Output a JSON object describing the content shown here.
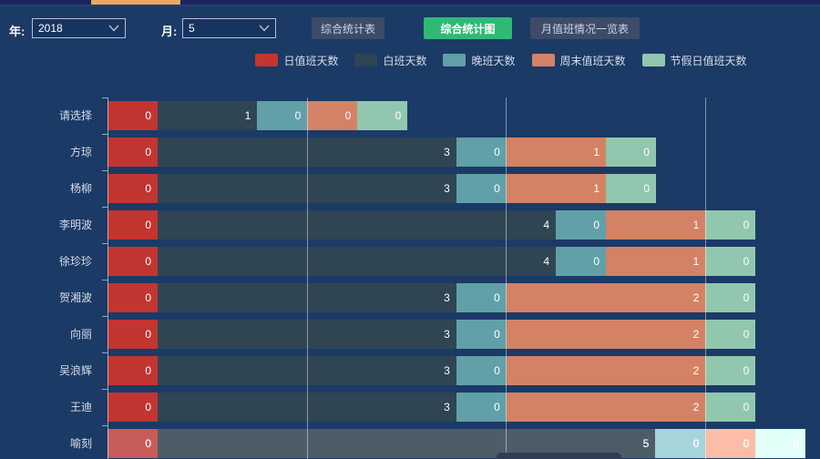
{
  "top_strip": {
    "accent_color": "#e9a85f"
  },
  "toolbar": {
    "year_label": "年:",
    "year_value": "2018",
    "month_label": "月:",
    "month_value": "5",
    "buttons": [
      {
        "label": "综合统计表",
        "active": false
      },
      {
        "label": "综合统计图",
        "active": true
      },
      {
        "label": "月值班情况一览表",
        "active": false
      }
    ],
    "active_button_color": "#2eba74"
  },
  "chart_data": {
    "type": "bar",
    "orientation": "horizontal",
    "stacked": true,
    "title": "",
    "xlabel": "",
    "ylabel": "",
    "xlim": [
      0,
      7.2
    ],
    "gridlines_x": [
      2,
      4,
      6
    ],
    "grid": true,
    "legend_position": "top",
    "zero_value_min_width": true,
    "categories": [
      "请选择",
      "方琼",
      "杨柳",
      "李明波",
      "徐珍珍",
      "贺湘波",
      "向丽",
      "吴浪辉",
      "王迪",
      "喻刻"
    ],
    "series": [
      {
        "name": "日值班天数",
        "color": "#c23531",
        "values": [
          0,
          0,
          0,
          0,
          0,
          0,
          0,
          0,
          0,
          0
        ]
      },
      {
        "name": "白班天数",
        "color": "#2f4554",
        "values": [
          1,
          3,
          3,
          4,
          4,
          3,
          3,
          3,
          3,
          5
        ]
      },
      {
        "name": "晚班天数",
        "color": "#61a0a8",
        "values": [
          0,
          0,
          0,
          0,
          0,
          0,
          0,
          0,
          0,
          0
        ]
      },
      {
        "name": "周末值班天数",
        "color": "#d48265",
        "values": [
          0,
          1,
          1,
          1,
          1,
          2,
          2,
          2,
          2,
          0
        ]
      },
      {
        "name": "节假日值班天数",
        "color": "#91c7ae",
        "values": [
          0,
          0,
          0,
          0,
          0,
          0,
          0,
          0,
          0,
          0
        ]
      }
    ],
    "highlighted_category": "喻刻"
  }
}
